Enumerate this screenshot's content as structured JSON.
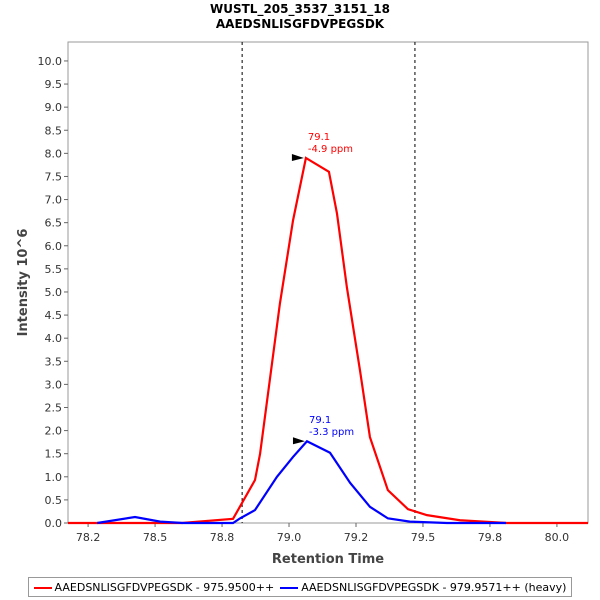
{
  "chart_data": {
    "type": "line",
    "title": "WUSTL_205_3537_3151_18",
    "subtitle": "AAEDSNLISGFDVPEGSDK",
    "xlabel": "Retention Time",
    "ylabel": "Intensity 10^6",
    "xlim": [
      78.175,
      80.116
    ],
    "ylim": [
      0,
      10.41
    ],
    "x_ticks": [
      78.25,
      78.5,
      78.75,
      79.0,
      79.25,
      79.5,
      79.75,
      80.0
    ],
    "x_tick_labels": [
      "78.2",
      "78.5",
      "78.8",
      "79.0",
      "79.2",
      "79.5",
      "79.8",
      "80.0"
    ],
    "y_ticks": [
      0,
      0.5,
      1,
      1.5,
      2,
      2.5,
      3,
      3.5,
      4,
      4.5,
      5,
      5.5,
      6,
      6.5,
      7,
      7.5,
      8,
      8.5,
      9,
      9.5,
      10
    ],
    "y_tick_labels": [
      "0.0",
      "0.5",
      "1.0",
      "1.5",
      "2.0",
      "2.5",
      "3.0",
      "3.5",
      "4.0",
      "4.5",
      "5.0",
      "5.5",
      "6.0",
      "6.5",
      "7.0",
      "7.5",
      "8.0",
      "8.5",
      "9.0",
      "9.5",
      "10.0"
    ],
    "boundaries": [
      78.825,
      79.47
    ],
    "legend_position": "bottom",
    "series": [
      {
        "name": "AAEDSNLISGFDVPEGSDK - 975.9500++",
        "color": "#ff0000",
        "x": [
          78.175,
          78.6,
          78.791,
          78.873,
          78.892,
          78.966,
          79.015,
          79.063,
          79.149,
          79.179,
          79.216,
          79.265,
          79.302,
          79.369,
          79.444,
          79.515,
          79.638,
          79.813,
          80.116
        ],
        "y": [
          0,
          0,
          0.09,
          0.93,
          1.5,
          4.75,
          6.55,
          7.9,
          7.6,
          6.7,
          5.1,
          3.3,
          1.86,
          0.71,
          0.3,
          0.17,
          0.06,
          0,
          0
        ],
        "annotation": {
          "x": 79.063,
          "y": 7.9,
          "line1": "79.1",
          "line2": "-4.9 ppm"
        }
      },
      {
        "name": "AAEDSNLISGFDVPEGSDK - 979.9571++ (heavy)",
        "color": "#0000ff",
        "x": [
          78.284,
          78.425,
          78.519,
          78.604,
          78.791,
          78.817,
          78.873,
          78.955,
          79.015,
          79.067,
          79.153,
          79.228,
          79.302,
          79.369,
          79.451,
          79.59,
          79.81
        ],
        "y": [
          0,
          0.13,
          0.03,
          0,
          0,
          0.1,
          0.28,
          1.0,
          1.43,
          1.77,
          1.52,
          0.87,
          0.35,
          0.1,
          0.03,
          0,
          0
        ],
        "annotation": {
          "x": 79.067,
          "y": 1.77,
          "line1": "79.1",
          "line2": "-3.3 ppm"
        }
      }
    ]
  }
}
